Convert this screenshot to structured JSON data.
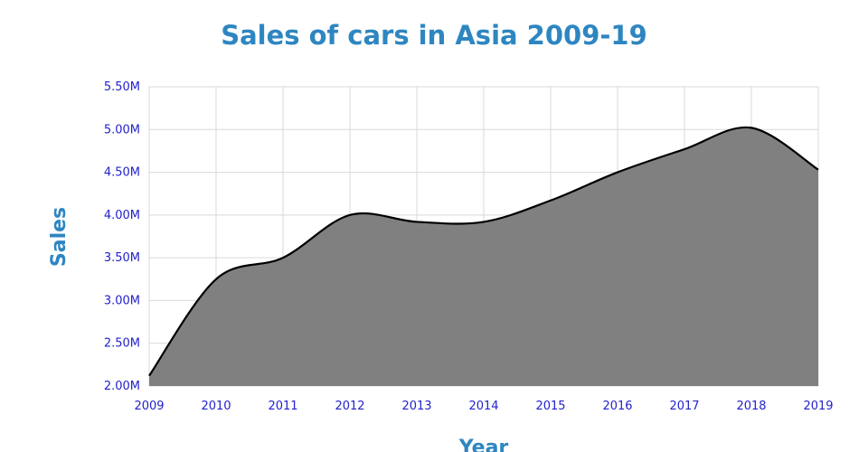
{
  "chart_data": {
    "type": "area",
    "title": "Sales of cars in Asia 2009-19",
    "xlabel": "Year",
    "ylabel": "Sales",
    "x": [
      2009,
      2010,
      2011,
      2012,
      2013,
      2014,
      2015,
      2016,
      2017,
      2018,
      2019
    ],
    "series": [
      {
        "values": [
          2.12,
          3.25,
          3.5,
          4.0,
          3.92,
          3.92,
          4.17,
          4.5,
          4.77,
          5.02,
          4.53
        ]
      }
    ],
    "xticks": [
      "2009",
      "2010",
      "2011",
      "2012",
      "2013",
      "2014",
      "2015",
      "2016",
      "2017",
      "2018",
      "2019"
    ],
    "yticks": [
      "2.00M",
      "2.50M",
      "3.00M",
      "3.50M",
      "4.00M",
      "4.50M",
      "5.00M",
      "5.50M"
    ],
    "ylim": [
      2.0,
      5.5
    ],
    "xlim": [
      2009,
      2019
    ],
    "y_unit": "millions",
    "grid": true,
    "colors": {
      "fill": "#808080",
      "line": "#000000",
      "title": "#2e86c1",
      "ticks": "#2222cc",
      "grid": "#d9d9d9"
    }
  }
}
